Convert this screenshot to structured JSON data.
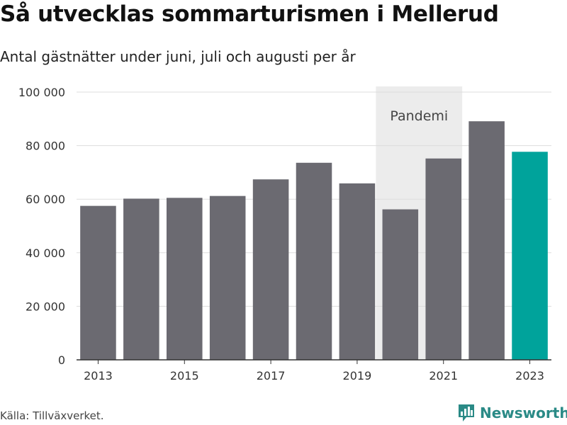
{
  "chart_data": {
    "type": "bar",
    "title": "Så utvecklas sommarturismen i Mellerud",
    "subtitle": "Antal gästnätter under juni, juli och augusti per år",
    "categories": [
      "2013",
      "2014",
      "2015",
      "2016",
      "2017",
      "2018",
      "2019",
      "2020",
      "2021",
      "2022",
      "2023"
    ],
    "values": [
      57500,
      60200,
      60500,
      61200,
      67400,
      73600,
      65900,
      56200,
      75200,
      89100,
      77700
    ],
    "xticks": [
      "2013",
      "2015",
      "2017",
      "2019",
      "2021",
      "2023"
    ],
    "yticks": [
      0,
      20000,
      40000,
      60000,
      80000,
      100000
    ],
    "ytick_labels": [
      "0",
      "20 000",
      "40 000",
      "60 000",
      "80 000",
      "100 000"
    ],
    "ylim": [
      0,
      100000
    ],
    "grid": true,
    "bar_color": "#6b6a71",
    "highlight_color": "#00a39b",
    "highlight_category": "2023",
    "annotation": {
      "label": "Pandemi",
      "x_start": "2020",
      "x_end": "2021",
      "band_color": "#ececec"
    }
  },
  "footer": {
    "source": "Källa: Tillväxverket.",
    "brand": "Newsworthy",
    "brand_icon": "bar-chart-logo-icon",
    "brand_color": "#2a8a86"
  }
}
